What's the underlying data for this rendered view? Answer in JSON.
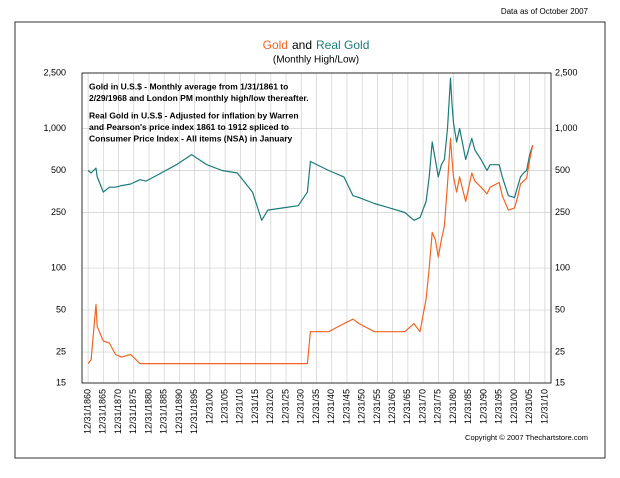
{
  "chart_data": {
    "type": "line",
    "title": [
      {
        "text": "Gold",
        "color": "#f26522"
      },
      {
        "text": "and",
        "color": "#000000"
      },
      {
        "text": "Real Gold",
        "color": "#1b7b7b"
      }
    ],
    "subtitle": "(Monthly High/Low)",
    "data_note": "Data as of October 2007",
    "copyright": "Copyright © 2007 Thechartstore.com",
    "annotations": [
      {
        "lines": [
          "Gold in U.S.$ - Monthly average from 1/31/1861 to",
          "2/29/1968 and London PM monthly high/low thereafter."
        ],
        "color": "#f26522"
      },
      {
        "lines": [
          "Real Gold in U.S.$ - Adjusted for inflation by Warren",
          "and Pearson's price index 1861 to 1912 spliced to",
          "Consumer Price Index - All items (NSA) in January"
        ],
        "color": "#1b7b7b"
      }
    ],
    "log_scale": true,
    "grid": true,
    "xlim": [
      1859,
      2013
    ],
    "xticks": [
      {
        "value": 1861,
        "label": "12/31/1860"
      },
      {
        "value": 1866,
        "label": "12/31/1865"
      },
      {
        "value": 1871,
        "label": "12/31/1870"
      },
      {
        "value": 1876,
        "label": "12/31/1875"
      },
      {
        "value": 1881,
        "label": "12/31/1880"
      },
      {
        "value": 1886,
        "label": "12/31/1885"
      },
      {
        "value": 1891,
        "label": "12/31/1890"
      },
      {
        "value": 1896,
        "label": "12/31/1895"
      },
      {
        "value": 1901,
        "label": "12/31/00"
      },
      {
        "value": 1906,
        "label": "12/31/05"
      },
      {
        "value": 1911,
        "label": "12/31/10"
      },
      {
        "value": 1916,
        "label": "12/31/15"
      },
      {
        "value": 1921,
        "label": "12/31/20"
      },
      {
        "value": 1926,
        "label": "12/31/25"
      },
      {
        "value": 1931,
        "label": "12/31/30"
      },
      {
        "value": 1936,
        "label": "12/31/35"
      },
      {
        "value": 1941,
        "label": "12/31/40"
      },
      {
        "value": 1946,
        "label": "12/31/45"
      },
      {
        "value": 1951,
        "label": "12/31/50"
      },
      {
        "value": 1956,
        "label": "12/31/55"
      },
      {
        "value": 1961,
        "label": "12/31/60"
      },
      {
        "value": 1966,
        "label": "12/31/65"
      },
      {
        "value": 1971,
        "label": "12/31/70"
      },
      {
        "value": 1976,
        "label": "12/31/75"
      },
      {
        "value": 1981,
        "label": "12/31/80"
      },
      {
        "value": 1986,
        "label": "12/31/85"
      },
      {
        "value": 1991,
        "label": "12/31/90"
      },
      {
        "value": 1996,
        "label": "12/31/95"
      },
      {
        "value": 2001,
        "label": "12/31/00"
      },
      {
        "value": 2006,
        "label": "12/31/05"
      },
      {
        "value": 2011,
        "label": "12/31/10"
      }
    ],
    "ylim": [
      15,
      2500
    ],
    "yticks": [
      15,
      25,
      50,
      100,
      250,
      500,
      {
        "value": 1000,
        "label": "1,000"
      },
      {
        "value": 2500,
        "label": "2,500"
      }
    ],
    "x": [
      1861,
      1862,
      1863.6,
      1864,
      1866,
      1868,
      1870,
      1872,
      1875,
      1878,
      1880,
      1885,
      1890,
      1895,
      1900,
      1905,
      1910,
      1915,
      1918,
      1920,
      1925,
      1930,
      1933,
      1934,
      1940,
      1945,
      1948,
      1950,
      1955,
      1960,
      1965,
      1968,
      1970,
      1972,
      1973,
      1974,
      1975,
      1976,
      1977,
      1978,
      1979,
      1980,
      1980.5,
      1981,
      1982,
      1983,
      1985,
      1987,
      1988,
      1990,
      1992,
      1993,
      1996,
      1997,
      1999,
      2001,
      2002,
      2003,
      2004,
      2005,
      2006,
      2007
    ],
    "series": [
      {
        "name": "Real Gold",
        "color": "#1b7b7b",
        "values": [
          500,
          480,
          520,
          450,
          350,
          380,
          380,
          390,
          400,
          430,
          420,
          480,
          550,
          650,
          550,
          500,
          480,
          350,
          220,
          260,
          270,
          280,
          350,
          580,
          500,
          450,
          330,
          320,
          290,
          270,
          250,
          220,
          230,
          300,
          450,
          800,
          600,
          450,
          550,
          600,
          1000,
          2300,
          1500,
          1100,
          800,
          1000,
          600,
          850,
          700,
          600,
          500,
          550,
          550,
          450,
          330,
          320,
          380,
          450,
          480,
          500,
          650,
          760
        ]
      },
      {
        "name": "Gold",
        "color": "#f26522",
        "values": [
          20.67,
          22,
          55,
          38,
          30,
          29,
          24,
          23,
          24,
          20.67,
          20.67,
          20.67,
          20.67,
          20.67,
          20.67,
          20.67,
          20.67,
          20.67,
          20.67,
          20.67,
          20.67,
          20.67,
          20.67,
          35,
          35,
          40,
          43,
          40,
          35,
          35,
          35,
          40,
          35,
          60,
          100,
          180,
          160,
          120,
          160,
          200,
          400,
          850,
          600,
          450,
          350,
          450,
          300,
          480,
          420,
          380,
          340,
          380,
          410,
          330,
          260,
          270,
          320,
          400,
          420,
          440,
          600,
          760
        ]
      }
    ]
  }
}
